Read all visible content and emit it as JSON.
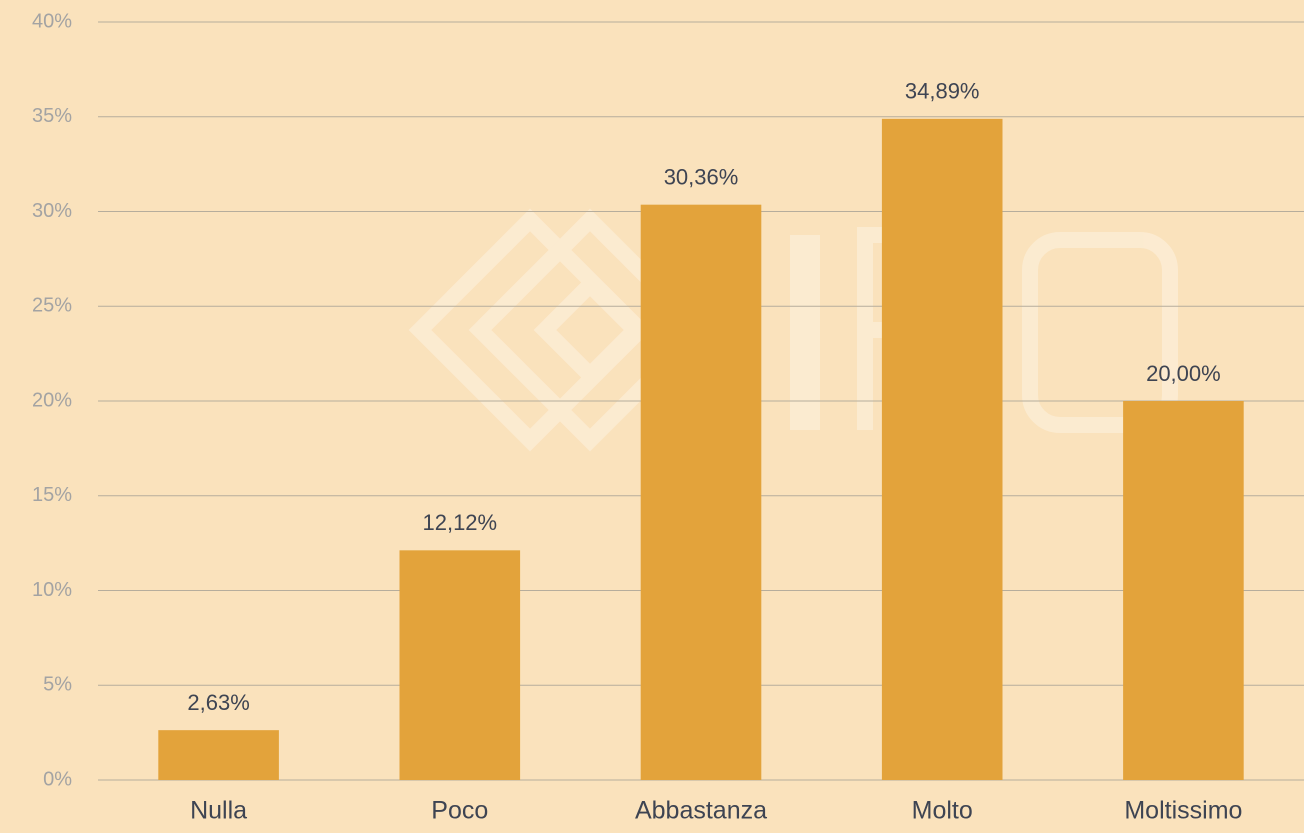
{
  "chart_data": {
    "type": "bar",
    "categories": [
      "Nulla",
      "Poco",
      "Abbastanza",
      "Molto",
      "Moltissimo"
    ],
    "values": [
      2.63,
      12.12,
      30.36,
      34.89,
      20.0
    ],
    "value_labels": [
      "2,63%",
      "12,12%",
      "30,36%",
      "34,89%",
      "20,00%"
    ],
    "color": "#e3a33b",
    "ylim": [
      0,
      40
    ],
    "yticks": [
      {
        "value": 0,
        "label": "0%"
      },
      {
        "value": 5,
        "label": "5%"
      },
      {
        "value": 10,
        "label": "10%"
      },
      {
        "value": 15,
        "label": "15%"
      },
      {
        "value": 20,
        "label": "20%"
      },
      {
        "value": 25,
        "label": "25%"
      },
      {
        "value": 30,
        "label": "30%"
      },
      {
        "value": 35,
        "label": "35%"
      },
      {
        "value": 40,
        "label": "40%"
      }
    ],
    "grid": true
  }
}
